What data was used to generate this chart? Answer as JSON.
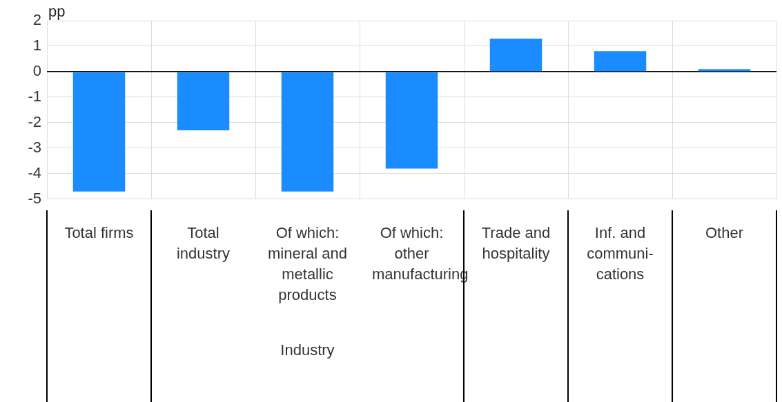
{
  "chart_data": {
    "type": "bar",
    "ylabel": "pp",
    "categories": [
      "Total firms",
      "Total industry",
      "Of which: mineral and metallic products",
      "Of which: other manufacturing",
      "Trade and hospitality",
      "Inf. and communi-cations",
      "Other"
    ],
    "values": [
      -4.7,
      -2.3,
      -4.7,
      -3.8,
      1.3,
      0.8,
      0.1
    ],
    "color": "#1a8cff",
    "ylim": [
      -5,
      2
    ],
    "yticks": [
      -5,
      -4,
      -3,
      -2,
      -1,
      0,
      1,
      2
    ],
    "grid": true,
    "annotations": [
      "Industry"
    ]
  }
}
